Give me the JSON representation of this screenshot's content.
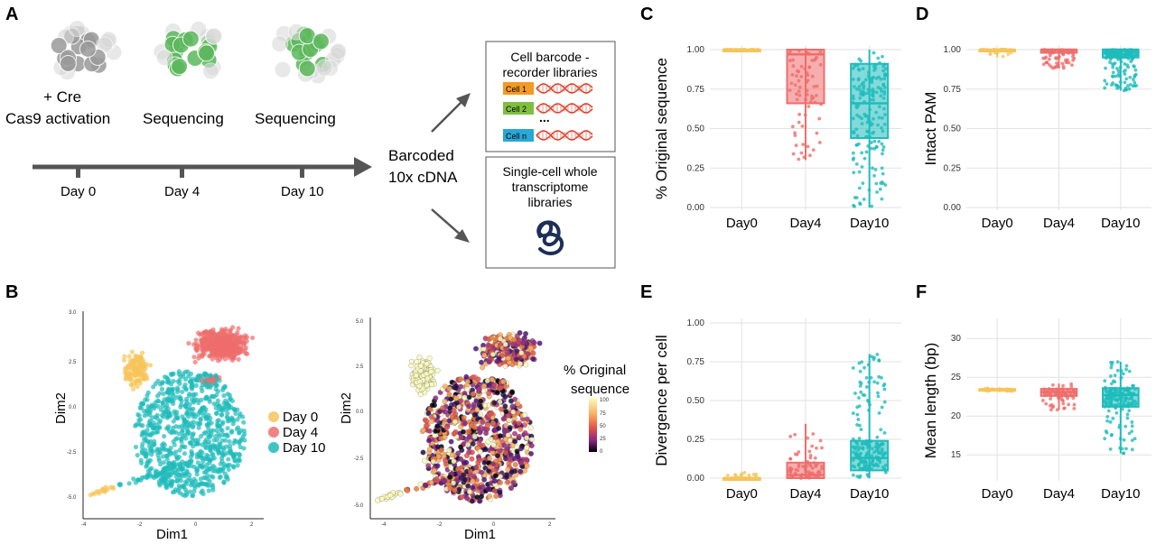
{
  "panels": {
    "A": {
      "label": "A",
      "stage_texts": [
        "+ Cre",
        "Cas9 activation",
        "Sequencing",
        "Sequencing"
      ],
      "timeline": [
        "Day 0",
        "Day 4",
        "Day 10"
      ],
      "middle": [
        "Barcoded",
        "10x cDNA"
      ],
      "box1": {
        "title": [
          "Cell barcode -",
          "recorder libraries"
        ],
        "cells": [
          "Cell 1",
          "Cell 2",
          "Cell n"
        ],
        "ellipsis": "..."
      },
      "box2": {
        "title": [
          "Single-cell whole",
          "transcriptome",
          "libraries"
        ]
      },
      "colors": {
        "cell1": "#f39a24",
        "cell2": "#7fbf3f",
        "celln": "#2aa7d6",
        "dna": "#d9402b",
        "gray_cells": "#9a9a9a",
        "green_cells": "#5cb85c",
        "arrow": "#555555",
        "rna": "#1d2f57"
      }
    },
    "B": {
      "label": "B",
      "left": {
        "xlabel": "Dim1",
        "ylabel": "Dim2",
        "yticks": [
          "2.5",
          "0.0",
          "-2.5",
          "-5.0"
        ],
        "xticks": [
          "-4",
          "-2",
          "0",
          "2"
        ],
        "legend": [
          "Day 0",
          "Day 4",
          "Day 10"
        ]
      },
      "right": {
        "xlabel": "Dim1",
        "ylabel": "Dim2",
        "yticks": [
          "5.0",
          "2.5",
          "0.0",
          "-2.5",
          "-5.0"
        ],
        "xticks": [
          "-4",
          "-2",
          "0",
          "2"
        ],
        "colorbar_title": [
          "% Original",
          "sequence"
        ],
        "colorbar_ticks": [
          "100",
          "75",
          "50",
          "25",
          "0"
        ]
      }
    }
  },
  "colors": {
    "day0": "#f6c45a",
    "day4": "#ee6e6c",
    "day10": "#1fbbbb"
  },
  "chart_data": [
    {
      "type": "box",
      "panel": "C",
      "categories": [
        "Day0",
        "Day4",
        "Day10"
      ],
      "ylabel": "% Original sequence",
      "yticks": [
        "1.00",
        "0.75",
        "0.50",
        "0.25",
        "0.00"
      ],
      "ylim": [
        0,
        1
      ],
      "series": [
        {
          "name": "Day0",
          "q1": 1.0,
          "median": 1.0,
          "q3": 1.0,
          "min": 0.99,
          "max": 1.0
        },
        {
          "name": "Day4",
          "q1": 0.66,
          "median": 0.97,
          "q3": 1.0,
          "min": 0.3,
          "max": 1.0
        },
        {
          "name": "Day10",
          "q1": 0.44,
          "median": 0.66,
          "q3": 0.91,
          "min": 0.0,
          "max": 1.0
        }
      ]
    },
    {
      "type": "box",
      "panel": "D",
      "categories": [
        "Day0",
        "Day4",
        "Day10"
      ],
      "ylabel": "Intact PAM",
      "yticks": [
        "1.00",
        "0.75",
        "0.50",
        "0.25",
        "0.00"
      ],
      "ylim": [
        0,
        1
      ],
      "series": [
        {
          "name": "Day0",
          "q1": 1.0,
          "median": 1.0,
          "q3": 1.0,
          "min": 0.95,
          "max": 1.0
        },
        {
          "name": "Day4",
          "q1": 0.98,
          "median": 1.0,
          "q3": 1.0,
          "min": 0.88,
          "max": 1.0
        },
        {
          "name": "Day10",
          "q1": 0.95,
          "median": 1.0,
          "q3": 1.0,
          "min": 0.74,
          "max": 1.0
        }
      ]
    },
    {
      "type": "box",
      "panel": "E",
      "categories": [
        "Day0",
        "Day4",
        "Day10"
      ],
      "ylabel": "Divergence per cell",
      "yticks": [
        "1.00",
        "0.75",
        "0.50",
        "0.25",
        "0.00"
      ],
      "ylim": [
        0,
        1
      ],
      "series": [
        {
          "name": "Day0",
          "q1": 0.0,
          "median": 0.0,
          "q3": 0.0,
          "min": 0.0,
          "max": 0.04
        },
        {
          "name": "Day4",
          "q1": 0.0,
          "median": 0.02,
          "q3": 0.1,
          "min": 0.0,
          "max": 0.35
        },
        {
          "name": "Day10",
          "q1": 0.05,
          "median": 0.13,
          "q3": 0.24,
          "min": 0.0,
          "max": 0.8
        }
      ]
    },
    {
      "type": "box",
      "panel": "F",
      "categories": [
        "Day0",
        "Day4",
        "Day10"
      ],
      "ylabel": "Mean length (bp)",
      "yticks": [
        "30",
        "25",
        "20",
        "15"
      ],
      "ylim": [
        12,
        32
      ],
      "series": [
        {
          "name": "Day0",
          "q1": 23.3,
          "median": 23.4,
          "q3": 23.5,
          "min": 23.2,
          "max": 23.6
        },
        {
          "name": "Day4",
          "q1": 22.6,
          "median": 23.1,
          "q3": 23.5,
          "min": 20.8,
          "max": 24.2
        },
        {
          "name": "Day10",
          "q1": 21.2,
          "median": 22.7,
          "q3": 23.6,
          "min": 15.2,
          "max": 27.0
        }
      ]
    }
  ]
}
